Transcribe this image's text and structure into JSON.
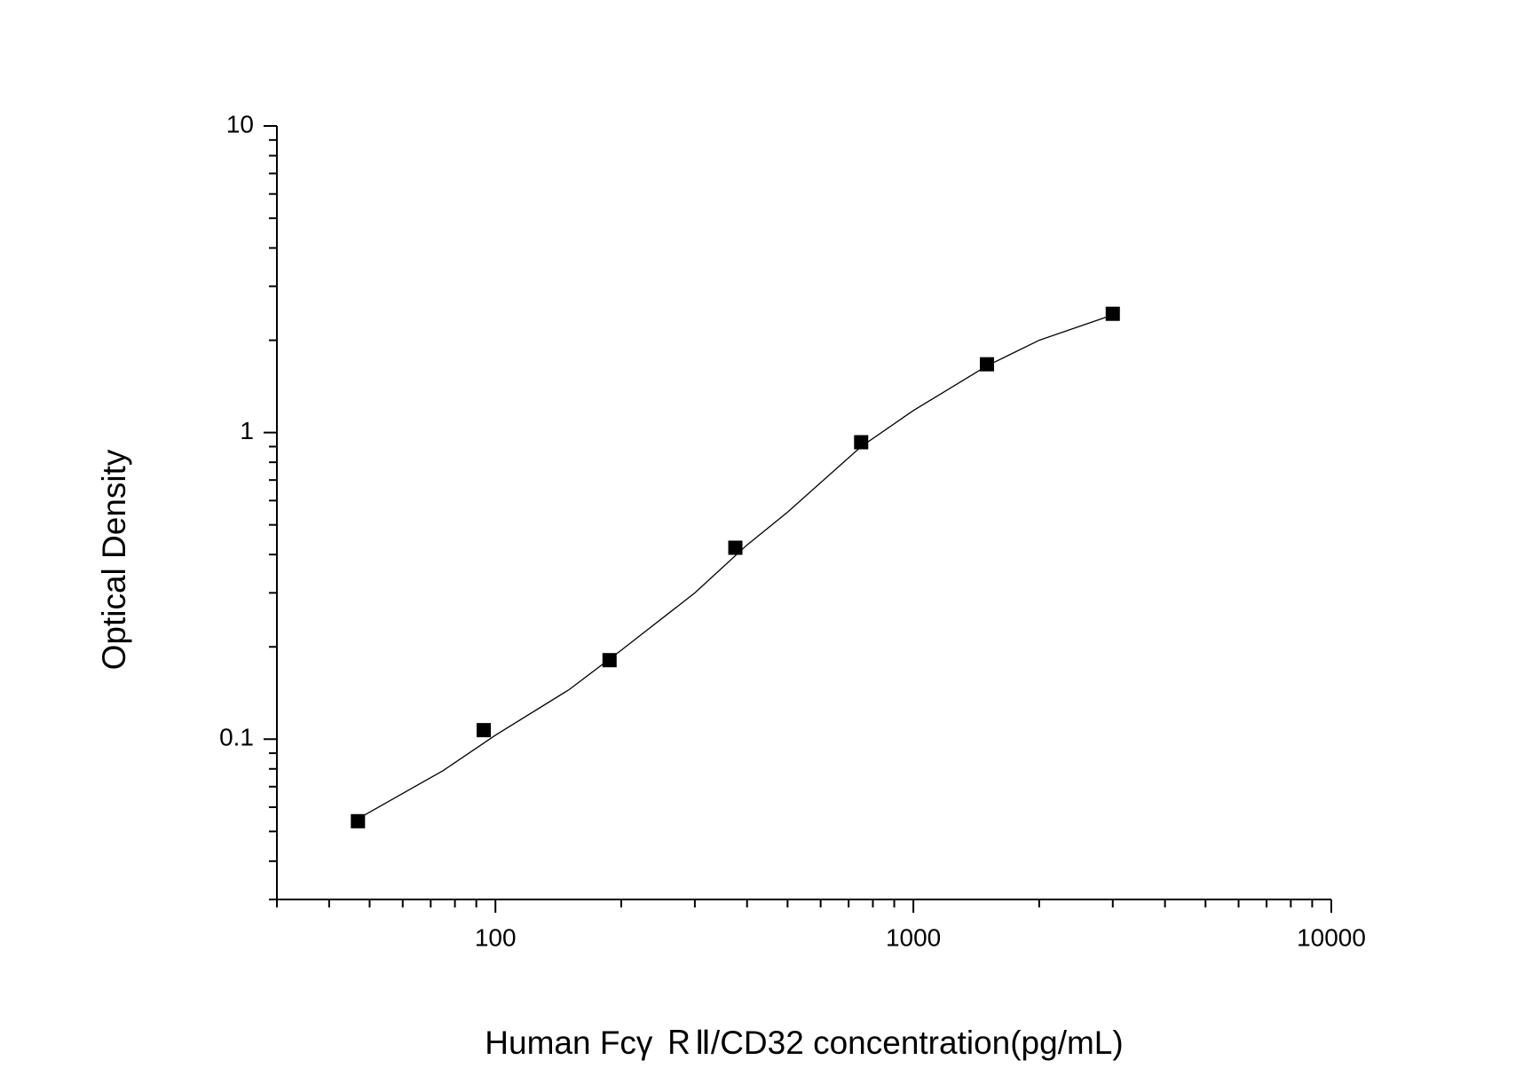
{
  "chart_data": {
    "type": "scatter",
    "xlabel": "Human Fcγ ＲⅡ/CD32 concentration(pg/mL)",
    "ylabel": "Optical Density",
    "xscale": "log",
    "yscale": "log",
    "xlim": [
      30,
      10000
    ],
    "ylim": [
      0.03,
      10
    ],
    "xticks": [
      100,
      1000,
      10000
    ],
    "yticks": [
      0.1,
      1,
      10
    ],
    "xminorticks": [
      30,
      40,
      50,
      60,
      70,
      80,
      90,
      200,
      300,
      400,
      500,
      600,
      700,
      800,
      900,
      2000,
      3000,
      4000,
      5000,
      6000,
      7000,
      8000,
      9000
    ],
    "yminorticks": [
      0.03,
      0.04,
      0.05,
      0.06,
      0.07,
      0.08,
      0.09,
      0.2,
      0.3,
      0.4,
      0.5,
      0.6,
      0.7,
      0.8,
      0.9,
      2,
      3,
      4,
      5,
      6,
      7,
      8,
      9
    ],
    "series": [
      {
        "mode": "markers",
        "marker": "square",
        "color": "#000000",
        "x": [
          46.88,
          93.75,
          187.5,
          375,
          750,
          1500,
          3000
        ],
        "values": [
          0.054,
          0.107,
          0.181,
          0.421,
          0.93,
          1.67,
          2.44
        ]
      },
      {
        "mode": "line",
        "color": "#000000",
        "x": [
          46.88,
          75,
          100,
          150,
          200,
          300,
          400,
          500,
          750,
          1000,
          1500,
          2000,
          3000
        ],
        "values": [
          0.055,
          0.079,
          0.103,
          0.145,
          0.195,
          0.3,
          0.43,
          0.55,
          0.9,
          1.18,
          1.65,
          2.0,
          2.42
        ]
      }
    ]
  }
}
